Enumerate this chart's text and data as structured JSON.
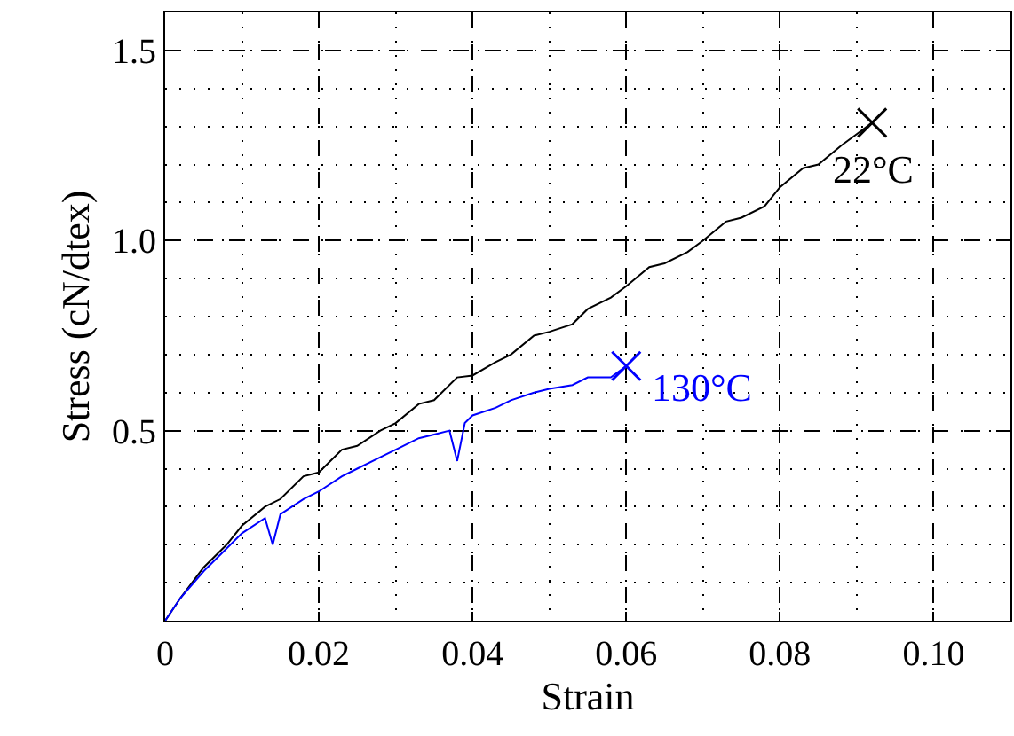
{
  "chart_data": {
    "type": "line",
    "xlabel": "Strain",
    "ylabel": "Stress (cN/dtex)",
    "xlim": [
      0,
      0.11
    ],
    "xticks": [
      {
        "value": 0,
        "label": "0"
      },
      0.02,
      0.04,
      0.06,
      0.08,
      {
        "value": 0.1,
        "label": "0.10"
      }
    ],
    "ylim": [
      0,
      1.6
    ],
    "yticks": [
      0.5,
      {
        "value": 1.0,
        "label": "1.0"
      },
      1.5
    ],
    "grid": true,
    "marker": "none",
    "line_style": "solid",
    "series": [
      {
        "color": "#000000",
        "x": [
          0,
          0.002,
          0.005,
          0.008,
          0.01,
          0.013,
          0.015,
          0.018,
          0.02,
          0.023,
          0.025,
          0.028,
          0.03,
          0.033,
          0.035,
          0.038,
          0.04,
          0.043,
          0.045,
          0.048,
          0.05,
          0.053,
          0.055,
          0.058,
          0.06,
          0.063,
          0.065,
          0.068,
          0.07,
          0.073,
          0.075,
          0.078,
          0.08,
          0.083,
          0.085,
          0.088,
          0.09,
          0.092
        ],
        "values": [
          0,
          0.06,
          0.14,
          0.2,
          0.25,
          0.3,
          0.32,
          0.38,
          0.39,
          0.45,
          0.46,
          0.5,
          0.52,
          0.57,
          0.58,
          0.64,
          0.645,
          0.68,
          0.7,
          0.75,
          0.76,
          0.78,
          0.82,
          0.85,
          0.88,
          0.93,
          0.94,
          0.97,
          1.0,
          1.05,
          1.06,
          1.09,
          1.14,
          1.19,
          1.2,
          1.25,
          1.28,
          1.31
        ]
      },
      {
        "color": "#0000ff",
        "x": [
          0,
          0.002,
          0.005,
          0.008,
          0.01,
          0.013,
          0.014,
          0.015,
          0.018,
          0.02,
          0.023,
          0.025,
          0.028,
          0.03,
          0.033,
          0.035,
          0.037,
          0.038,
          0.039,
          0.04,
          0.043,
          0.045,
          0.048,
          0.05,
          0.053,
          0.055,
          0.058,
          0.06
        ],
        "values": [
          0,
          0.06,
          0.13,
          0.19,
          0.23,
          0.27,
          0.2,
          0.28,
          0.32,
          0.34,
          0.38,
          0.4,
          0.43,
          0.45,
          0.48,
          0.49,
          0.5,
          0.42,
          0.52,
          0.54,
          0.56,
          0.58,
          0.6,
          0.61,
          0.62,
          0.64,
          0.64,
          0.67
        ]
      },
      {
        "type": "scatter",
        "marker": "cross",
        "color": "#000000",
        "x": [
          0.092
        ],
        "values": [
          1.31
        ]
      },
      {
        "type": "scatter",
        "marker": "cross",
        "color": "#0000ff",
        "x": [
          0.06
        ],
        "values": [
          0.67
        ]
      }
    ],
    "annotations": [
      {
        "text": "22°C",
        "x": 0.092,
        "y": 1.31
      },
      {
        "text": "130°C",
        "x": 0.06,
        "y": 0.67
      }
    ]
  }
}
